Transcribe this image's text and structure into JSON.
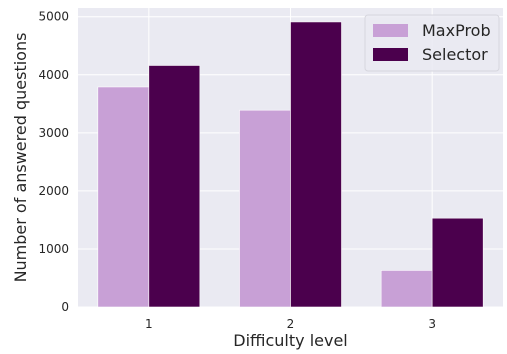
{
  "chart_data": {
    "type": "bar",
    "categories": [
      "1",
      "2",
      "3"
    ],
    "series": [
      {
        "name": "MaxProb",
        "values": [
          3790,
          3390,
          630
        ],
        "color": "#c8a0d6"
      },
      {
        "name": "Selector",
        "values": [
          4160,
          4910,
          1530
        ],
        "color": "#4b004d"
      }
    ],
    "xlabel": "Difficulty level",
    "ylabel": "Number of answered questions",
    "ylim": [
      0,
      5150
    ],
    "yticks": [
      0,
      1000,
      2000,
      3000,
      4000,
      5000
    ],
    "ytick_labels": [
      "0",
      "1000",
      "2000",
      "3000",
      "4000",
      "5000"
    ],
    "grid": true,
    "legend_position": "top-right",
    "background_color": "#eaeaf2",
    "grid_color": "#ffffff"
  }
}
